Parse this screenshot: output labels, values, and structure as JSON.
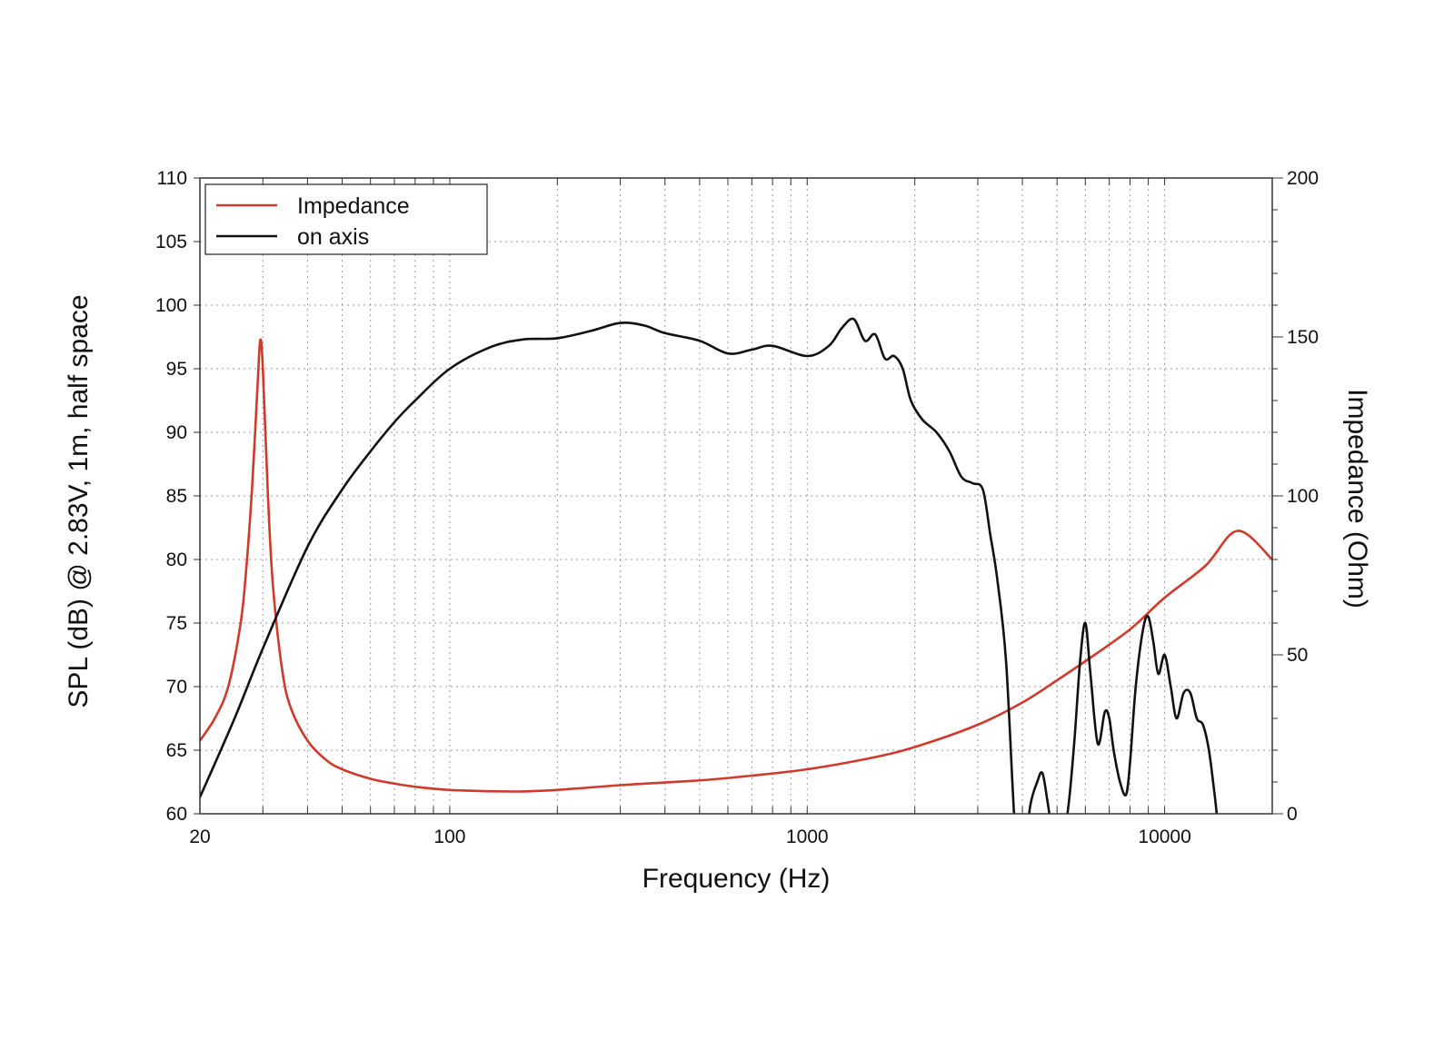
{
  "colors": {
    "impedance": "#d03a2c",
    "on_axis": "#111111",
    "grid": "#9a9a9a",
    "frame": "#333333"
  },
  "chart_data": {
    "type": "line",
    "title": "",
    "xlabel": "Frequency (Hz)",
    "ylabel": "SPL (dB) @ 2.83V, 1m, half space",
    "ylabel_right": "Impedance (Ohm)",
    "x_scale": "log",
    "xlim": [
      20,
      20000
    ],
    "ylim": [
      60,
      110
    ],
    "ylim_right": [
      0,
      200
    ],
    "x_ticks": [
      "20",
      "100",
      "1000",
      "10000"
    ],
    "y_ticks": [
      "60",
      "65",
      "70",
      "75",
      "80",
      "85",
      "90",
      "95",
      "100",
      "105",
      "110"
    ],
    "y_ticks_right": [
      "0",
      "50",
      "100",
      "150",
      "200"
    ],
    "grid": true,
    "legend_position": "top-left",
    "series": [
      {
        "name": "Impedance",
        "axis": "right",
        "x": [
          20,
          22,
          24,
          26,
          27,
          28,
          29,
          29.5,
          30,
          31,
          32,
          34,
          36,
          40,
          45,
          50,
          60,
          70,
          80,
          100,
          150,
          200,
          300,
          500,
          700,
          1000,
          1500,
          2000,
          3000,
          4000,
          5000,
          6000,
          8000,
          10000,
          13000,
          16000,
          20000
        ],
        "y": [
          23,
          30,
          40,
          60,
          78,
          103,
          135,
          149,
          140,
          100,
          72,
          45,
          33,
          23,
          17,
          14,
          11,
          9.5,
          8.5,
          7.5,
          7,
          7.5,
          9,
          10.5,
          12,
          14,
          17.5,
          21,
          28,
          35,
          42,
          48,
          58,
          68,
          78,
          89,
          80
        ]
      },
      {
        "name": "on axis",
        "axis": "left",
        "x": [
          20,
          25,
          30,
          40,
          50,
          60,
          70,
          80,
          100,
          130,
          160,
          200,
          250,
          300,
          350,
          400,
          500,
          600,
          700,
          800,
          1000,
          1150,
          1250,
          1350,
          1450,
          1550,
          1650,
          1750,
          1850,
          1950,
          2100,
          2300,
          2500,
          2700,
          2900,
          3100,
          3250,
          3400,
          3600,
          3800,
          3950,
          4050,
          4200,
          4400,
          4550,
          4700,
          4850,
          5000,
          5200,
          5400,
          5600,
          5800,
          6000,
          6200,
          6500,
          6800,
          7000,
          7200,
          7500,
          7800,
          8000,
          8300,
          8700,
          9000,
          9300,
          9600,
          10000,
          10400,
          10800,
          11300,
          11800,
          12300,
          12800,
          13300,
          13800,
          14300,
          15000,
          15600,
          16200,
          16700
        ],
        "y": [
          61.3,
          67.5,
          73,
          81,
          85.5,
          88.5,
          90.8,
          92.5,
          95,
          96.7,
          97.3,
          97.4,
          98,
          98.6,
          98.4,
          97.8,
          97.2,
          96.2,
          96.5,
          96.8,
          96.0,
          96.8,
          98.2,
          98.9,
          97.2,
          97.7,
          95.8,
          96.0,
          95.0,
          92.5,
          91.0,
          90.0,
          88.5,
          86.5,
          86.0,
          85.5,
          82.0,
          78.5,
          72.0,
          59.5,
          55.0,
          56.0,
          60.5,
          62.5,
          63.2,
          61.0,
          58.5,
          57.5,
          58.0,
          61.0,
          66.0,
          72.0,
          75.0,
          71.0,
          65.5,
          68.0,
          67.5,
          65.0,
          62.5,
          61.5,
          64.0,
          70.0,
          74.5,
          75.5,
          73.5,
          71.0,
          72.5,
          70.0,
          67.5,
          69.5,
          69.5,
          67.5,
          67.0,
          65.0,
          61.5,
          58.0,
          57.5,
          57.5,
          57.5,
          57.5
        ]
      }
    ]
  }
}
